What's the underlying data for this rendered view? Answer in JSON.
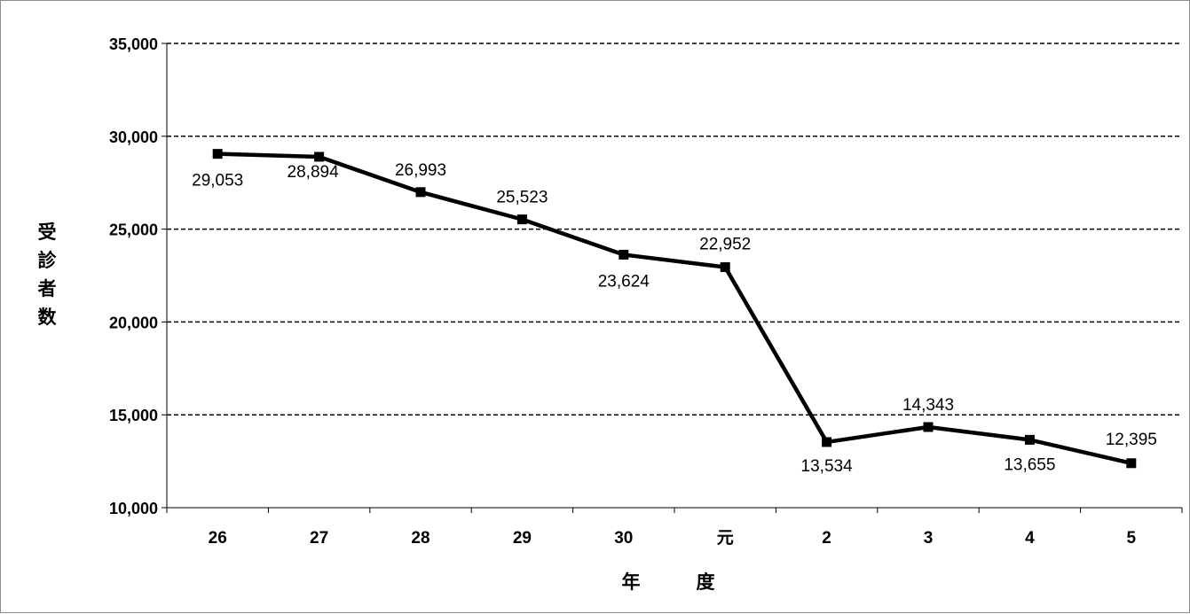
{
  "chart_data": {
    "type": "line",
    "xlabel": "年　　　度",
    "ylabel": "受診者数",
    "categories": [
      "26",
      "27",
      "28",
      "29",
      "30",
      "元",
      "2",
      "3",
      "4",
      "5"
    ],
    "series": [
      {
        "values": [
          29053,
          28894,
          26993,
          25523,
          23624,
          22952,
          13534,
          14343,
          13655,
          12395
        ]
      }
    ],
    "data_labels": [
      "29,053",
      "28,894",
      "26,993",
      "25,523",
      "23,624",
      "22,952",
      "13,534",
      "14,343",
      "13,655",
      "12,395"
    ],
    "yticks": [
      "10,000",
      "15,000",
      "20,000",
      "25,000",
      "30,000",
      "35,000"
    ],
    "ylim": [
      10000,
      35000
    ],
    "grid": "horizontal-dashed",
    "legend": "none",
    "line_color": "#000000",
    "marker": "square"
  }
}
